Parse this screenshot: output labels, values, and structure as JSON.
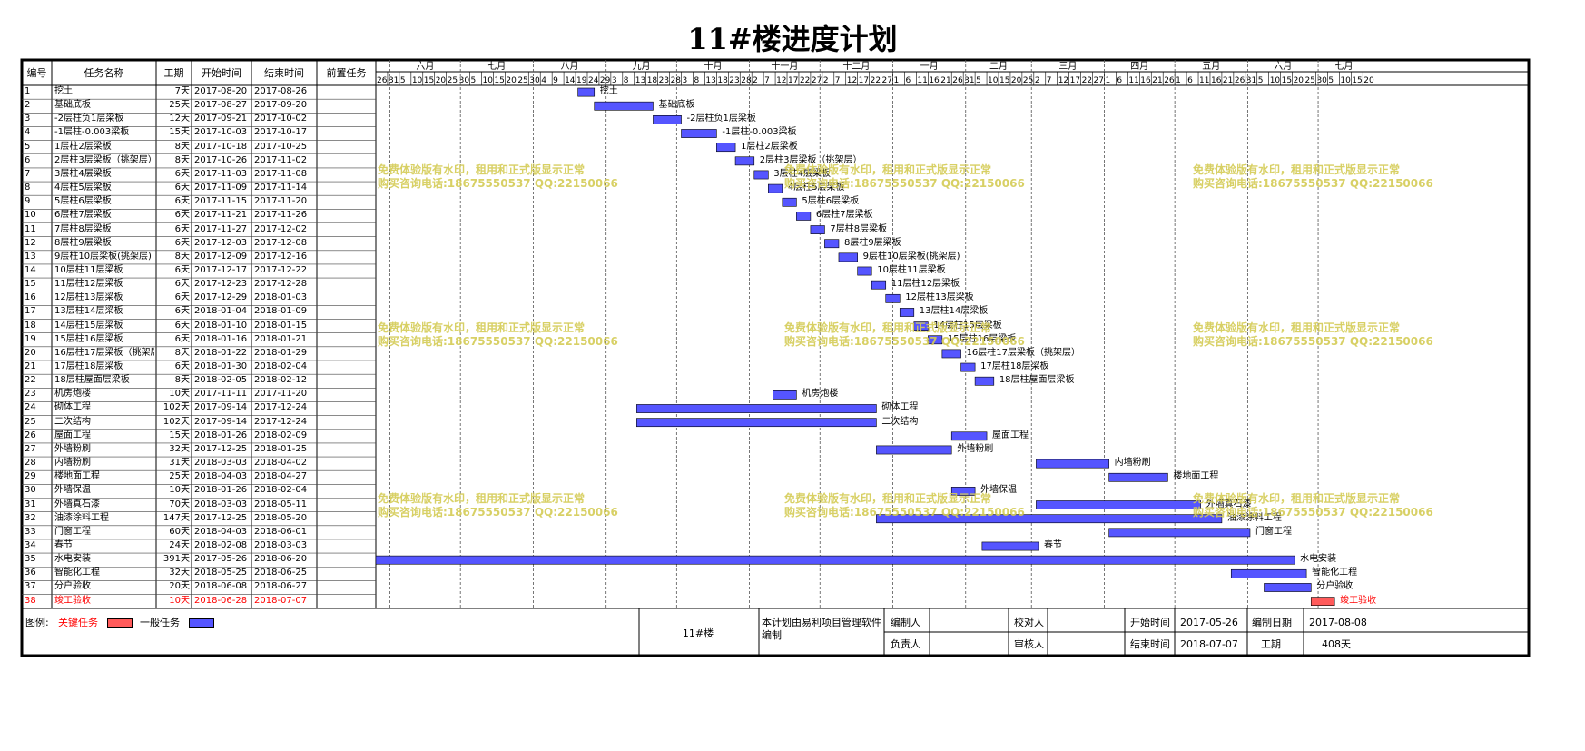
{
  "title": "11#楼进度计划",
  "columns": [
    "编号",
    "任务名称",
    "工期",
    "开始时间",
    "结束时间",
    "前置任务"
  ],
  "timeline": {
    "start": "2017-05-26",
    "end": "2018-07-23",
    "months": [
      {
        "label": "六月",
        "start": "2017-06-01"
      },
      {
        "label": "七月",
        "start": "2017-07-01"
      },
      {
        "label": "八月",
        "start": "2017-08-01"
      },
      {
        "label": "九月",
        "start": "2017-09-01"
      },
      {
        "label": "十月",
        "start": "2017-10-01"
      },
      {
        "label": "十一月",
        "start": "2017-11-01"
      },
      {
        "label": "十二月",
        "start": "2017-12-01"
      },
      {
        "label": "一月",
        "start": "2018-01-01"
      },
      {
        "label": "二月",
        "start": "2018-02-01"
      },
      {
        "label": "三月",
        "start": "2018-03-01"
      },
      {
        "label": "四月",
        "start": "2018-04-01"
      },
      {
        "label": "五月",
        "start": "2018-05-01"
      },
      {
        "label": "六月",
        "start": "2018-06-01"
      },
      {
        "label": "七月",
        "start": "2018-07-01"
      }
    ],
    "day_ticks": [
      "2017-05-26",
      "2017-05-31",
      "2017-06-05",
      "2017-06-10",
      "2017-06-15",
      "2017-06-20",
      "2017-06-25",
      "2017-06-30",
      "2017-07-05",
      "2017-07-10",
      "2017-07-15",
      "2017-07-20",
      "2017-07-25",
      "2017-07-30",
      "2017-08-04",
      "2017-08-09",
      "2017-08-14",
      "2017-08-19",
      "2017-08-24",
      "2017-08-29",
      "2017-09-03",
      "2017-09-08",
      "2017-09-13",
      "2017-09-18",
      "2017-09-23",
      "2017-09-28",
      "2017-10-03",
      "2017-10-08",
      "2017-10-13",
      "2017-10-18",
      "2017-10-23",
      "2017-10-28",
      "2017-11-02",
      "2017-11-07",
      "2017-11-12",
      "2017-11-17",
      "2017-11-22",
      "2017-11-27",
      "2017-12-02",
      "2017-12-07",
      "2017-12-12",
      "2017-12-17",
      "2017-12-22",
      "2017-12-27",
      "2018-01-01",
      "2018-01-06",
      "2018-01-11",
      "2018-01-16",
      "2018-01-21",
      "2018-01-26",
      "2018-01-31",
      "2018-02-05",
      "2018-02-10",
      "2018-02-15",
      "2018-02-20",
      "2018-02-25",
      "2018-03-02",
      "2018-03-07",
      "2018-03-12",
      "2018-03-17",
      "2018-03-22",
      "2018-03-27",
      "2018-04-01",
      "2018-04-06",
      "2018-04-11",
      "2018-04-16",
      "2018-04-21",
      "2018-04-26",
      "2018-05-01",
      "2018-05-06",
      "2018-05-11",
      "2018-05-16",
      "2018-05-21",
      "2018-05-26",
      "2018-05-31",
      "2018-06-05",
      "2018-06-10",
      "2018-06-15",
      "2018-06-20",
      "2018-06-25",
      "2018-06-30",
      "2018-07-05",
      "2018-07-10",
      "2018-07-15",
      "2018-07-20"
    ]
  },
  "chart_data": {
    "type": "gantt",
    "title": "11#楼进度计划",
    "x_range": [
      "2017-05-26",
      "2018-07-23"
    ],
    "tasks": [
      {
        "id": "1",
        "name": "挖土",
        "duration": "7天",
        "start": "2017-08-20",
        "end": "2017-08-26",
        "predecessor": "",
        "critical": false
      },
      {
        "id": "2",
        "name": "基础底板",
        "duration": "25天",
        "start": "2017-08-27",
        "end": "2017-09-20",
        "predecessor": "",
        "critical": false
      },
      {
        "id": "3",
        "name": "-2层柱负1层梁板",
        "duration": "12天",
        "start": "2017-09-21",
        "end": "2017-10-02",
        "predecessor": "",
        "critical": false
      },
      {
        "id": "4",
        "name": "-1层柱-0.003梁板",
        "duration": "15天",
        "start": "2017-10-03",
        "end": "2017-10-17",
        "predecessor": "",
        "critical": false
      },
      {
        "id": "5",
        "name": "1层柱2层梁板",
        "duration": "8天",
        "start": "2017-10-18",
        "end": "2017-10-25",
        "predecessor": "",
        "critical": false
      },
      {
        "id": "6",
        "name": "2层柱3层梁板（挑架层）",
        "duration": "8天",
        "start": "2017-10-26",
        "end": "2017-11-02",
        "predecessor": "",
        "critical": false
      },
      {
        "id": "7",
        "name": "3层柱4层梁板",
        "duration": "6天",
        "start": "2017-11-03",
        "end": "2017-11-08",
        "predecessor": "",
        "critical": false
      },
      {
        "id": "8",
        "name": "4层柱5层梁板",
        "duration": "6天",
        "start": "2017-11-09",
        "end": "2017-11-14",
        "predecessor": "",
        "critical": false
      },
      {
        "id": "9",
        "name": "5层柱6层梁板",
        "duration": "6天",
        "start": "2017-11-15",
        "end": "2017-11-20",
        "predecessor": "",
        "critical": false
      },
      {
        "id": "10",
        "name": "6层柱7层梁板",
        "duration": "6天",
        "start": "2017-11-21",
        "end": "2017-11-26",
        "predecessor": "",
        "critical": false
      },
      {
        "id": "11",
        "name": "7层柱8层梁板",
        "duration": "6天",
        "start": "2017-11-27",
        "end": "2017-12-02",
        "predecessor": "",
        "critical": false
      },
      {
        "id": "12",
        "name": "8层柱9层梁板",
        "duration": "6天",
        "start": "2017-12-03",
        "end": "2017-12-08",
        "predecessor": "",
        "critical": false
      },
      {
        "id": "13",
        "name": "9层柱10层梁板(挑架层)",
        "duration": "8天",
        "start": "2017-12-09",
        "end": "2017-12-16",
        "predecessor": "",
        "critical": false
      },
      {
        "id": "14",
        "name": "10层柱11层梁板",
        "duration": "6天",
        "start": "2017-12-17",
        "end": "2017-12-22",
        "predecessor": "",
        "critical": false
      },
      {
        "id": "15",
        "name": "11层柱12层梁板",
        "duration": "6天",
        "start": "2017-12-23",
        "end": "2017-12-28",
        "predecessor": "",
        "critical": false
      },
      {
        "id": "16",
        "name": "12层柱13层梁板",
        "duration": "6天",
        "start": "2017-12-29",
        "end": "2018-01-03",
        "predecessor": "",
        "critical": false
      },
      {
        "id": "17",
        "name": "13层柱14层梁板",
        "duration": "6天",
        "start": "2018-01-04",
        "end": "2018-01-09",
        "predecessor": "",
        "critical": false
      },
      {
        "id": "18",
        "name": "14层柱15层梁板",
        "duration": "6天",
        "start": "2018-01-10",
        "end": "2018-01-15",
        "predecessor": "",
        "critical": false
      },
      {
        "id": "19",
        "name": "15层柱16层梁板",
        "duration": "6天",
        "start": "2018-01-16",
        "end": "2018-01-21",
        "predecessor": "",
        "critical": false
      },
      {
        "id": "20",
        "name": "16层柱17层梁板（挑架层）",
        "duration": "8天",
        "start": "2018-01-22",
        "end": "2018-01-29",
        "predecessor": "",
        "critical": false
      },
      {
        "id": "21",
        "name": "17层柱18层梁板",
        "duration": "6天",
        "start": "2018-01-30",
        "end": "2018-02-04",
        "predecessor": "",
        "critical": false
      },
      {
        "id": "22",
        "name": "18层柱屋面层梁板",
        "duration": "8天",
        "start": "2018-02-05",
        "end": "2018-02-12",
        "predecessor": "",
        "critical": false
      },
      {
        "id": "23",
        "name": "机房炮楼",
        "duration": "10天",
        "start": "2017-11-11",
        "end": "2017-11-20",
        "predecessor": "",
        "critical": false
      },
      {
        "id": "24",
        "name": "砌体工程",
        "duration": "102天",
        "start": "2017-09-14",
        "end": "2017-12-24",
        "predecessor": "",
        "critical": false
      },
      {
        "id": "25",
        "name": "二次结构",
        "duration": "102天",
        "start": "2017-09-14",
        "end": "2017-12-24",
        "predecessor": "",
        "critical": false
      },
      {
        "id": "26",
        "name": "屋面工程",
        "duration": "15天",
        "start": "2018-01-26",
        "end": "2018-02-09",
        "predecessor": "",
        "critical": false
      },
      {
        "id": "27",
        "name": "外墙粉刷",
        "duration": "32天",
        "start": "2017-12-25",
        "end": "2018-01-25",
        "predecessor": "",
        "critical": false
      },
      {
        "id": "28",
        "name": "内墙粉刷",
        "duration": "31天",
        "start": "2018-03-03",
        "end": "2018-04-02",
        "predecessor": "",
        "critical": false
      },
      {
        "id": "29",
        "name": "楼地面工程",
        "duration": "25天",
        "start": "2018-04-03",
        "end": "2018-04-27",
        "predecessor": "",
        "critical": false
      },
      {
        "id": "30",
        "name": "外墙保温",
        "duration": "10天",
        "start": "2018-01-26",
        "end": "2018-02-04",
        "predecessor": "",
        "critical": false
      },
      {
        "id": "31",
        "name": "外墙真石漆",
        "duration": "70天",
        "start": "2018-03-03",
        "end": "2018-05-11",
        "predecessor": "",
        "critical": false
      },
      {
        "id": "32",
        "name": "油漆涂料工程",
        "duration": "147天",
        "start": "2017-12-25",
        "end": "2018-05-20",
        "predecessor": "",
        "critical": false
      },
      {
        "id": "33",
        "name": "门窗工程",
        "duration": "60天",
        "start": "2018-04-03",
        "end": "2018-06-01",
        "predecessor": "",
        "critical": false
      },
      {
        "id": "34",
        "name": "春节",
        "duration": "24天",
        "start": "2018-02-08",
        "end": "2018-03-03",
        "predecessor": "",
        "critical": false
      },
      {
        "id": "35",
        "name": "水电安装",
        "duration": "391天",
        "start": "2017-05-26",
        "end": "2018-06-20",
        "predecessor": "",
        "critical": false
      },
      {
        "id": "36",
        "name": "智能化工程",
        "duration": "32天",
        "start": "2018-05-25",
        "end": "2018-06-25",
        "predecessor": "",
        "critical": false
      },
      {
        "id": "37",
        "name": "分户验收",
        "duration": "20天",
        "start": "2018-06-08",
        "end": "2018-06-27",
        "predecessor": "",
        "critical": false
      },
      {
        "id": "38",
        "name": "竣工验收",
        "duration": "10天",
        "start": "2018-06-28",
        "end": "2018-07-07",
        "predecessor": "",
        "critical": true
      }
    ]
  },
  "colors": {
    "normal": "#5555ff",
    "critical": "#ff5a5a",
    "critical_text": "#ff0000",
    "watermark": "#d4cc55"
  },
  "watermark": {
    "line1": "免费体验版有水印，租用和正式版显示正常",
    "line2": "购买咨询电话:18675550537 QQ:22150066"
  },
  "legend": {
    "label": "图例:",
    "critical": "关键任务",
    "normal": "一般任务"
  },
  "footer": {
    "project": "11#楼",
    "note": "本计划由易利项目管理软件编制",
    "compiler_label": "编制人",
    "compiler": "",
    "checker_label": "校对人",
    "checker": "",
    "responsible_label": "负责人",
    "responsible": "",
    "reviewer_label": "审核人",
    "reviewer": "",
    "start_label": "开始时间",
    "start": "2017-05-26",
    "end_label": "结束时间",
    "end": "2018-07-07",
    "date_label": "编制日期",
    "date": "2017-08-08",
    "duration_label": "工期",
    "duration": "408天"
  }
}
